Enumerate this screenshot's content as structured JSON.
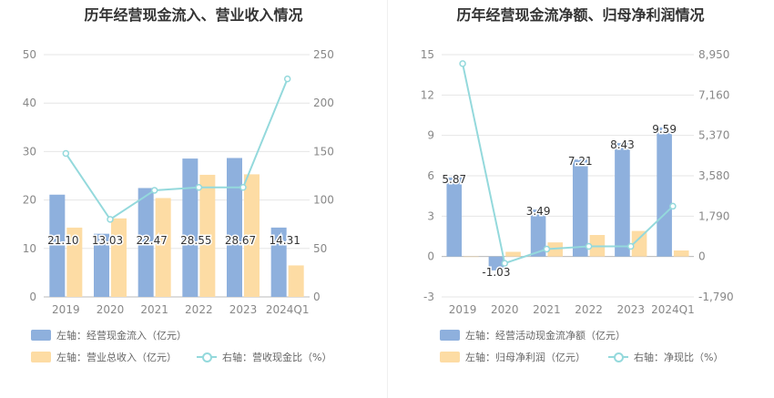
{
  "chart_data": [
    {
      "type": "bar",
      "title": "历年经营现金流入、营业收入情况",
      "categories": [
        "2019",
        "2020",
        "2021",
        "2022",
        "2023",
        "2024Q1"
      ],
      "left_axis": {
        "ticks": [
          "0",
          "10",
          "20",
          "30",
          "40",
          "50"
        ],
        "ylim": [
          0,
          50
        ]
      },
      "right_axis": {
        "ticks": [
          "0",
          "50",
          "100",
          "150",
          "200",
          "250"
        ],
        "ylim": [
          0,
          250
        ]
      },
      "series": [
        {
          "name": "左轴：经营现金流入（亿元）",
          "axis": "left",
          "kind": "bar",
          "color": "#8eb0dd",
          "values": [
            21.1,
            13.03,
            22.47,
            28.55,
            28.67,
            14.31
          ],
          "labels": [
            "21.10",
            "13.03",
            "22.47",
            "28.55",
            "28.67",
            "14.31"
          ]
        },
        {
          "name": "左轴：营业总收入（亿元）",
          "axis": "left",
          "kind": "bar",
          "color": "#fddca4",
          "values": [
            14.3,
            16.2,
            20.4,
            25.2,
            25.3,
            6.5
          ]
        },
        {
          "name": "右轴：营收现金比（%）",
          "axis": "right",
          "kind": "line",
          "color": "#94d9dc",
          "values": [
            148,
            80,
            110,
            113,
            113,
            225
          ]
        }
      ],
      "legend_position": "bottom-left",
      "grid": true
    },
    {
      "type": "bar",
      "title": "历年经营现金流净额、归母净利润情况",
      "categories": [
        "2019",
        "2020",
        "2021",
        "2022",
        "2023",
        "2024Q1"
      ],
      "left_axis": {
        "ticks": [
          "-3",
          "0",
          "3",
          "6",
          "9",
          "12",
          "15"
        ],
        "ylim": [
          -3,
          15
        ]
      },
      "right_axis": {
        "ticks": [
          "-1,790",
          "0",
          "1,790",
          "3,580",
          "5,370",
          "7,160",
          "8,950"
        ],
        "ylim": [
          -1790,
          8950
        ]
      },
      "series": [
        {
          "name": "左轴：经营活动现金流净额（亿元）",
          "axis": "left",
          "kind": "bar",
          "color": "#8eb0dd",
          "values": [
            5.87,
            -1.03,
            3.49,
            7.21,
            8.43,
            9.59
          ],
          "labels": [
            "5.87",
            "-1.03",
            "3.49",
            "7.21",
            "8.43",
            "9.59"
          ]
        },
        {
          "name": "左轴：归母净利润（亿元）",
          "axis": "left",
          "kind": "bar",
          "color": "#fddca4",
          "values": [
            0.0,
            0.35,
            1.05,
            1.6,
            1.9,
            0.45
          ]
        },
        {
          "name": "右轴：净现比（%）",
          "axis": "right",
          "kind": "line",
          "color": "#94d9dc",
          "values": [
            8550,
            -300,
            330,
            450,
            450,
            2230
          ]
        }
      ],
      "legend_position": "bottom-left",
      "grid": true
    }
  ]
}
